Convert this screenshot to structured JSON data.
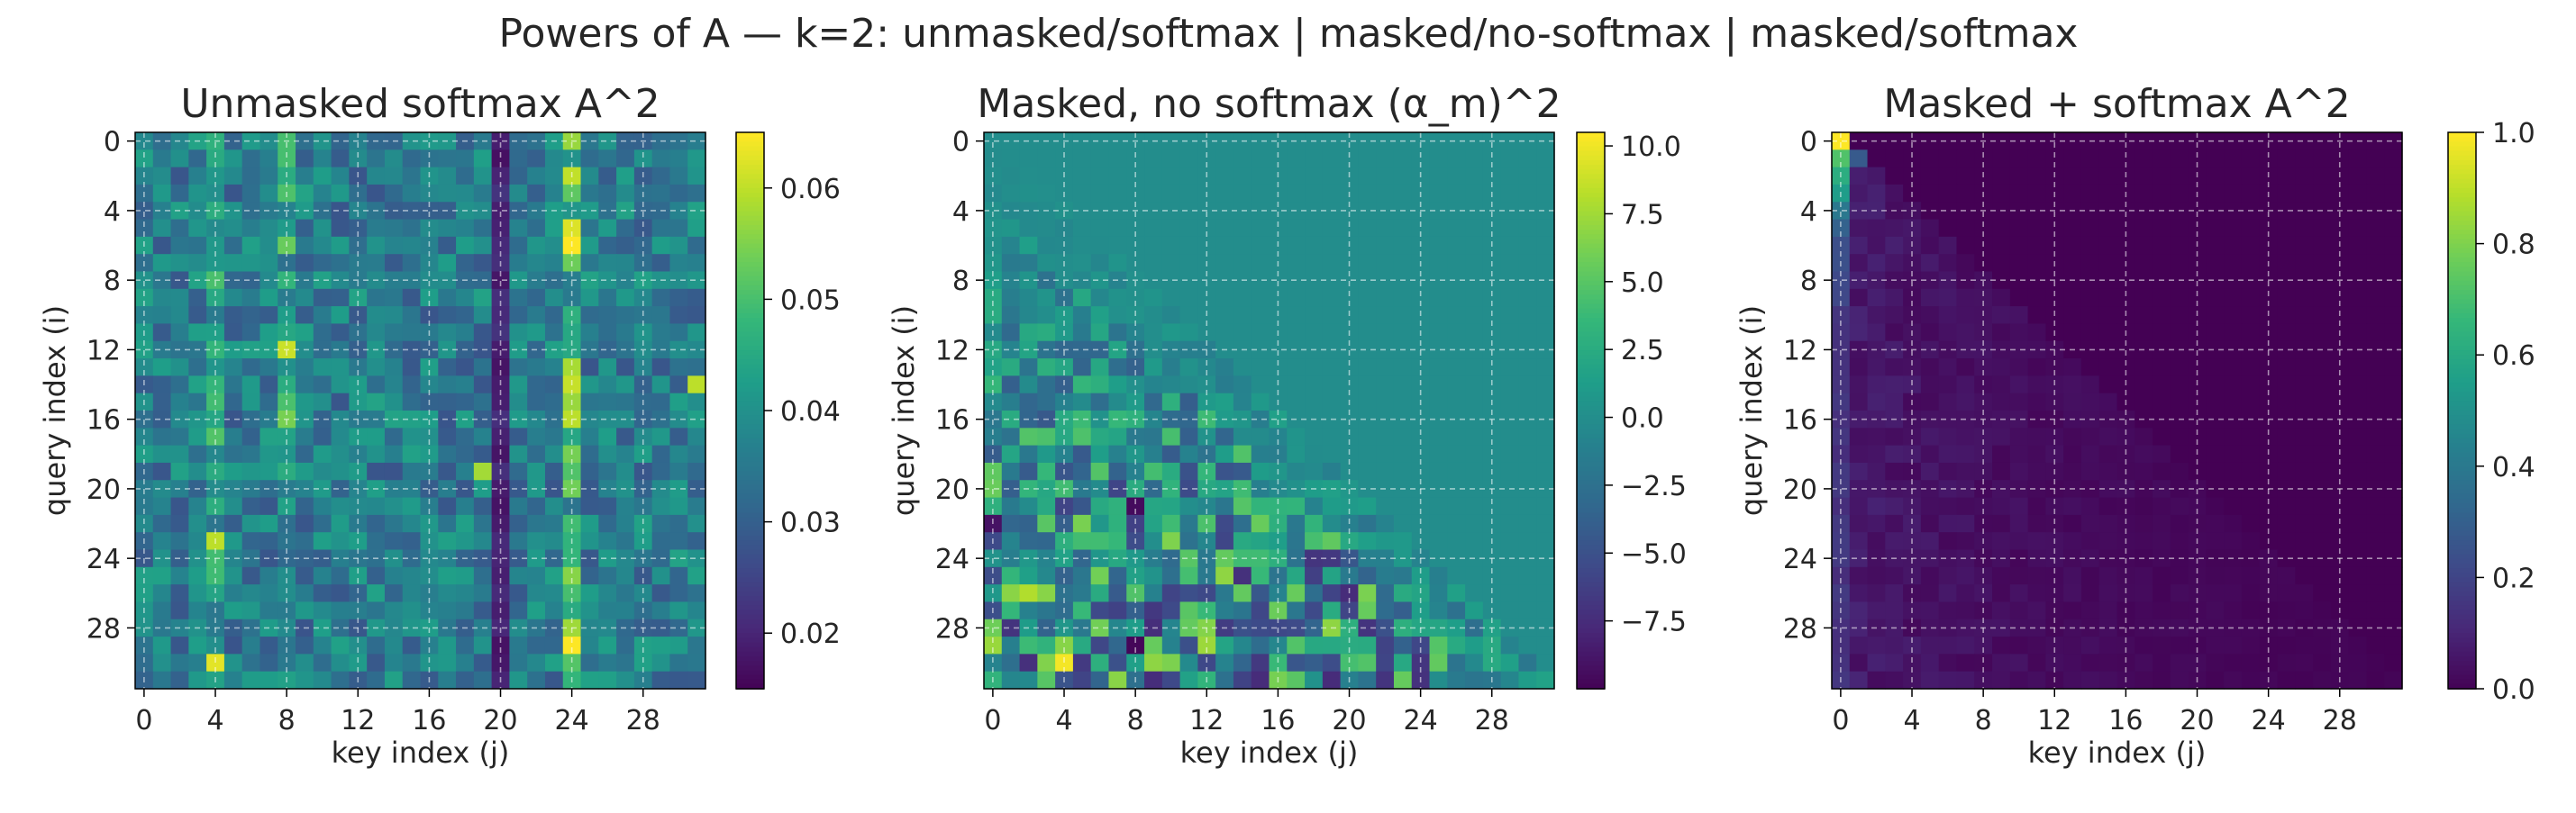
{
  "figure_title": "Powers of A — k=2:  unmasked/softmax  |  masked/no-softmax  |  masked/softmax",
  "chart_data": [
    {
      "type": "heatmap",
      "title": "Unmasked softmax  A^2",
      "xlabel": "key index (j)",
      "ylabel": "query index (i)",
      "n": 32,
      "x_ticks": [
        0,
        4,
        8,
        12,
        16,
        20,
        24,
        28
      ],
      "y_ticks": [
        0,
        4,
        8,
        12,
        16,
        20,
        24,
        28
      ],
      "colorbar": {
        "min": 0.015,
        "max": 0.065,
        "ticks": [
          0.02,
          0.03,
          0.04,
          0.05,
          0.06
        ],
        "tick_labels": [
          "0.02",
          "0.03",
          "0.04",
          "0.05",
          "0.06"
        ]
      },
      "grid": true,
      "colormap": "viridis",
      "value_pattern": "dense, roughly uniform around 0.03–0.04; bright columns near j=4, 8, 24 (up to ~0.065); dark column near j=20"
    },
    {
      "type": "heatmap",
      "title": "Masked, no softmax  (α_m)^2",
      "xlabel": "key index (j)",
      "ylabel": "query index (i)",
      "n": 32,
      "x_ticks": [
        0,
        4,
        8,
        12,
        16,
        20,
        24,
        28
      ],
      "y_ticks": [
        0,
        4,
        8,
        12,
        16,
        20,
        24,
        28
      ],
      "colorbar": {
        "min": -10,
        "max": 10.5,
        "ticks": [
          -7.5,
          -5.0,
          -2.5,
          0.0,
          2.5,
          5.0,
          7.5,
          10.0
        ],
        "tick_labels": [
          "−7.5",
          "−5.0",
          "−2.5",
          "0.0",
          "2.5",
          "5.0",
          "7.5",
          "10.0"
        ]
      },
      "grid": true,
      "colormap": "viridis",
      "value_pattern": "lower-triangular (j ≤ i); upper triangle = 0; magnitude grows with i, extremes about −10 to +10"
    },
    {
      "type": "heatmap",
      "title": "Masked + softmax  A^2",
      "xlabel": "key index (j)",
      "ylabel": "query index (i)",
      "n": 32,
      "x_ticks": [
        0,
        4,
        8,
        12,
        16,
        20,
        24,
        28
      ],
      "y_ticks": [
        0,
        4,
        8,
        12,
        16,
        20,
        24,
        28
      ],
      "colorbar": {
        "min": 0.0,
        "max": 1.0,
        "ticks": [
          0.0,
          0.2,
          0.4,
          0.6,
          0.8,
          1.0
        ],
        "tick_labels": [
          "0.0",
          "0.2",
          "0.4",
          "0.6",
          "0.8",
          "1.0"
        ]
      },
      "grid": true,
      "colormap": "viridis",
      "value_pattern": "lower-triangular; (0,0)=1.0; first column high for small i (~0.3–0.8) decaying; remaining entries ~0.02–0.1"
    }
  ]
}
